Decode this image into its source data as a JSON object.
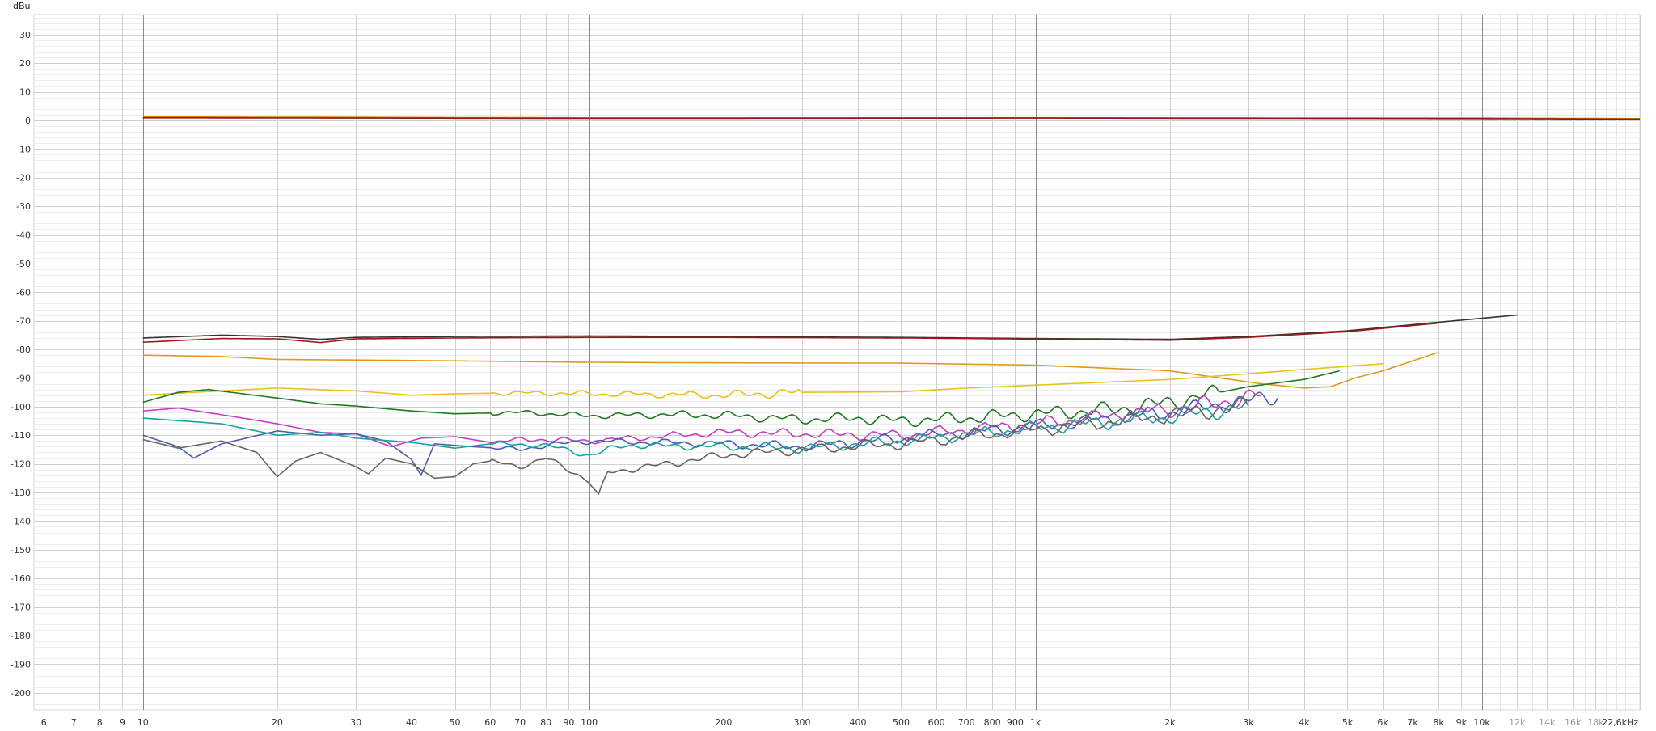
{
  "chart_data": {
    "type": "line",
    "x_scale": "log",
    "xlim": [
      5.7,
      22600
    ],
    "ylim": [
      -206,
      37
    ],
    "yunit": "dBu",
    "y_ticks": [
      30,
      20,
      10,
      0,
      -10,
      -20,
      -30,
      -40,
      -50,
      -60,
      -70,
      -80,
      -90,
      -100,
      -110,
      -120,
      -130,
      -140,
      -150,
      -160,
      -170,
      -180,
      -190,
      -200
    ],
    "y_tick_labels": [
      "30",
      "20",
      "10",
      "0",
      "-10",
      "-20",
      "-30",
      "-40",
      "-50",
      "-60",
      "-70",
      "-80",
      "-90",
      "-100",
      "-110",
      "-120",
      "-130",
      "-140",
      "-150",
      "-160",
      "-170",
      "-180",
      "-190",
      "-200"
    ],
    "x_ticks": [
      {
        "f": 6,
        "label": "6"
      },
      {
        "f": 7,
        "label": "7"
      },
      {
        "f": 8,
        "label": "8"
      },
      {
        "f": 9,
        "label": "9"
      },
      {
        "f": 10,
        "label": "10"
      },
      {
        "f": 20,
        "label": "20"
      },
      {
        "f": 30,
        "label": "30"
      },
      {
        "f": 40,
        "label": "40"
      },
      {
        "f": 50,
        "label": "50"
      },
      {
        "f": 60,
        "label": "60"
      },
      {
        "f": 70,
        "label": "70"
      },
      {
        "f": 80,
        "label": "80"
      },
      {
        "f": 90,
        "label": "90"
      },
      {
        "f": 100,
        "label": "100"
      },
      {
        "f": 200,
        "label": "200"
      },
      {
        "f": 300,
        "label": "300"
      },
      {
        "f": 400,
        "label": "400"
      },
      {
        "f": 500,
        "label": "500"
      },
      {
        "f": 600,
        "label": "600"
      },
      {
        "f": 700,
        "label": "700"
      },
      {
        "f": 800,
        "label": "800"
      },
      {
        "f": 900,
        "label": "900"
      },
      {
        "f": 1000,
        "label": "1k"
      },
      {
        "f": 2000,
        "label": "2k"
      },
      {
        "f": 3000,
        "label": "3k"
      },
      {
        "f": 4000,
        "label": "4k"
      },
      {
        "f": 5000,
        "label": "5k"
      },
      {
        "f": 6000,
        "label": "6k"
      },
      {
        "f": 7000,
        "label": "7k"
      },
      {
        "f": 8000,
        "label": "8k"
      },
      {
        "f": 9000,
        "label": "9k"
      },
      {
        "f": 10000,
        "label": "10k"
      },
      {
        "f": 12000,
        "label": "12k",
        "dim": true
      },
      {
        "f": 14000,
        "label": "14k",
        "dim": true
      },
      {
        "f": 16000,
        "label": "16k",
        "dim": true
      },
      {
        "f": 18000,
        "label": "18k",
        "dim": true
      },
      {
        "f": 22600,
        "label": "22,6kHz"
      }
    ],
    "grid": true,
    "series": [
      {
        "color": "#e07b00",
        "points": [
          [
            10,
            1.2
          ],
          [
            100,
            0.9
          ],
          [
            1000,
            0.9
          ],
          [
            10000,
            0.8
          ],
          [
            22600,
            0.6
          ]
        ]
      },
      {
        "color": "#8b1a1a",
        "points": [
          [
            10,
            0.9
          ],
          [
            100,
            0.7
          ],
          [
            1000,
            0.8
          ],
          [
            10000,
            0.6
          ],
          [
            22600,
            0.4
          ]
        ]
      },
      {
        "color": "#333333",
        "points": [
          [
            10,
            -76
          ],
          [
            15,
            -75
          ],
          [
            20,
            -75.5
          ],
          [
            25,
            -76.5
          ],
          [
            30,
            -75.8
          ],
          [
            50,
            -75.5
          ],
          [
            100,
            -75.3
          ],
          [
            200,
            -75.5
          ],
          [
            500,
            -75.8
          ],
          [
            1000,
            -76.2
          ],
          [
            2000,
            -76.5
          ],
          [
            3000,
            -75.5
          ],
          [
            5000,
            -73.5
          ],
          [
            8000,
            -70.5
          ],
          [
            12000,
            -68
          ]
        ]
      },
      {
        "color": "#a01818",
        "points": [
          [
            10,
            -77.5
          ],
          [
            15,
            -76.2
          ],
          [
            20,
            -76.3
          ],
          [
            25,
            -77.6
          ],
          [
            30,
            -76.3
          ],
          [
            50,
            -76
          ],
          [
            100,
            -75.8
          ],
          [
            200,
            -75.8
          ],
          [
            500,
            -76
          ],
          [
            1000,
            -76.4
          ],
          [
            2000,
            -76.8
          ],
          [
            3000,
            -75.8
          ],
          [
            5000,
            -73.8
          ],
          [
            8000,
            -70.8
          ]
        ]
      },
      {
        "color": "#e09a1a",
        "points": [
          [
            10,
            -82
          ],
          [
            15,
            -82.5
          ],
          [
            20,
            -83.5
          ],
          [
            50,
            -84
          ],
          [
            100,
            -84.5
          ],
          [
            200,
            -84.7
          ],
          [
            500,
            -84.8
          ],
          [
            1000,
            -85.5
          ],
          [
            2000,
            -87.5
          ],
          [
            2600,
            -90
          ],
          [
            3200,
            -92
          ],
          [
            4000,
            -93.5
          ],
          [
            4600,
            -93
          ],
          [
            5200,
            -90
          ],
          [
            6000,
            -87.5
          ],
          [
            8000,
            -81
          ]
        ]
      },
      {
        "color": "#e6c21a",
        "points": [
          [
            10,
            -96
          ],
          [
            13,
            -95
          ],
          [
            20,
            -93.5
          ],
          [
            30,
            -94.5
          ],
          [
            40,
            -96
          ],
          [
            50,
            -95.5
          ],
          [
            70,
            -95.2
          ],
          [
            100,
            -95.5
          ],
          [
            200,
            -96
          ],
          [
            300,
            -95
          ],
          [
            500,
            -94.8
          ],
          [
            700,
            -93.5
          ],
          [
            1000,
            -92.5
          ],
          [
            2000,
            -90.5
          ],
          [
            3000,
            -88.5
          ],
          [
            4000,
            -87
          ],
          [
            6000,
            -85
          ]
        ]
      },
      {
        "color": "#1f7a1f",
        "points": [
          [
            10,
            -98.5
          ],
          [
            12,
            -95
          ],
          [
            14,
            -94
          ],
          [
            20,
            -97
          ],
          [
            25,
            -99
          ],
          [
            30,
            -99.8
          ],
          [
            40,
            -101.5
          ],
          [
            50,
            -102.5
          ],
          [
            70,
            -102
          ],
          [
            100,
            -103.2
          ],
          [
            150,
            -102.8
          ],
          [
            200,
            -103
          ],
          [
            300,
            -104.5
          ],
          [
            400,
            -104
          ],
          [
            500,
            -105
          ],
          [
            700,
            -104
          ],
          [
            1000,
            -102.5
          ],
          [
            1500,
            -101
          ],
          [
            2000,
            -98.5
          ],
          [
            3000,
            -93
          ],
          [
            4000,
            -90.5
          ],
          [
            4800,
            -87.5
          ]
        ]
      },
      {
        "color": "#c23ec2",
        "points": [
          [
            10,
            -101.5
          ],
          [
            12,
            -100.5
          ],
          [
            16,
            -103.5
          ],
          [
            20,
            -106
          ],
          [
            25,
            -109
          ],
          [
            30,
            -109.5
          ],
          [
            36,
            -114
          ],
          [
            42,
            -111
          ],
          [
            50,
            -110.5
          ],
          [
            60,
            -112.5
          ],
          [
            70,
            -111.5
          ],
          [
            80,
            -111.5
          ],
          [
            100,
            -112
          ],
          [
            200,
            -109
          ],
          [
            300,
            -109.5
          ],
          [
            500,
            -110
          ],
          [
            1000,
            -106
          ],
          [
            2000,
            -101
          ],
          [
            2500,
            -99
          ],
          [
            3200,
            -96
          ]
        ]
      },
      {
        "color": "#4a5db0",
        "points": [
          [
            10,
            -110
          ],
          [
            12,
            -114
          ],
          [
            13,
            -118
          ],
          [
            15,
            -113
          ],
          [
            20,
            -108.5
          ],
          [
            25,
            -110
          ],
          [
            30,
            -109.5
          ],
          [
            35,
            -112
          ],
          [
            40,
            -118.5
          ],
          [
            42,
            -124
          ],
          [
            45,
            -113
          ],
          [
            55,
            -114
          ],
          [
            70,
            -115
          ],
          [
            80,
            -113.5
          ],
          [
            100,
            -112
          ],
          [
            200,
            -113
          ],
          [
            300,
            -114
          ],
          [
            500,
            -111
          ],
          [
            1000,
            -107
          ],
          [
            2000,
            -102
          ],
          [
            3000,
            -98
          ],
          [
            3500,
            -96
          ]
        ]
      },
      {
        "color": "#1aa0a0",
        "points": [
          [
            10,
            -104
          ],
          [
            15,
            -106
          ],
          [
            20,
            -110
          ],
          [
            25,
            -109
          ],
          [
            30,
            -111
          ],
          [
            40,
            -112.5
          ],
          [
            50,
            -114.5
          ],
          [
            60,
            -113
          ],
          [
            80,
            -113.5
          ],
          [
            100,
            -117
          ],
          [
            120,
            -113.5
          ],
          [
            200,
            -114
          ],
          [
            300,
            -114.5
          ],
          [
            500,
            -112
          ],
          [
            1000,
            -107.5
          ],
          [
            2000,
            -103.5
          ],
          [
            3000,
            -100
          ]
        ]
      },
      {
        "color": "#666666",
        "points": [
          [
            10,
            -111.5
          ],
          [
            12,
            -114.5
          ],
          [
            15,
            -112
          ],
          [
            18,
            -116
          ],
          [
            20,
            -124.5
          ],
          [
            22,
            -119
          ],
          [
            25,
            -116
          ],
          [
            30,
            -121
          ],
          [
            32,
            -123.5
          ],
          [
            35,
            -118
          ],
          [
            40,
            -120
          ],
          [
            45,
            -125
          ],
          [
            50,
            -124.5
          ],
          [
            55,
            -120
          ],
          [
            60,
            -119
          ],
          [
            70,
            -121
          ],
          [
            80,
            -118
          ],
          [
            90,
            -122
          ],
          [
            100,
            -126
          ],
          [
            105,
            -131.5
          ],
          [
            110,
            -123
          ],
          [
            150,
            -120
          ],
          [
            200,
            -117
          ],
          [
            300,
            -115
          ],
          [
            500,
            -113
          ],
          [
            1000,
            -108
          ],
          [
            2000,
            -103
          ],
          [
            3000,
            -99.5
          ]
        ]
      }
    ]
  }
}
